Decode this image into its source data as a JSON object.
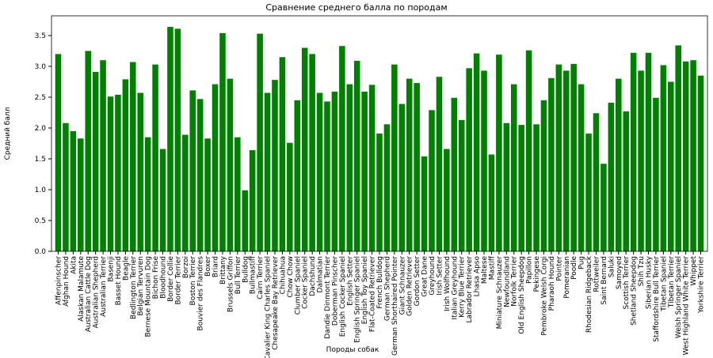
{
  "chart_data": {
    "type": "bar",
    "title": "Сравнение среднего балла по породам",
    "x_label": "Породы собак",
    "y_label": "Средний балл",
    "color": "#008000",
    "categories": [
      "Affenpinscher",
      "Afghan Hound",
      "Akita",
      "Alaskan Malamute",
      "Australian Cattle Dog",
      "Australian Shepherd",
      "Australian Terrier",
      "Basenji",
      "Basset Hound",
      "Beagle",
      "Bedlington Terrier",
      "Belgian Tervuren",
      "Bernese Mountain Dog",
      "Bichon Frise",
      "Bloodhound",
      "Border Collie",
      "Border Terrier",
      "Borzoi",
      "Boston Terrier",
      "Bouvier des Flandres",
      "Boxer",
      "Briard",
      "Brittany",
      "Brussels Griffon",
      "Bull Terrier",
      "Bulldog",
      "Bullmastiff",
      "Cairn Terrier",
      "Cavalier King Charles Spaniel",
      "Chesapeake Bay Retriever",
      "Chihuahua",
      "Chow Chow",
      "Clumber Spaniel",
      "Cocker Spaniel",
      "Dachshund",
      "Dalmatian",
      "Dandie Dinmont Terrier",
      "Doberman Pinscher",
      "English Cocker Spaniel",
      "English Setter",
      "English Springer Spaniel",
      "English Toy Spaniel",
      "Flat-Coated Retriever",
      "French Bulldog",
      "German Shepherd",
      "German Shorthaired Pointer",
      "Giant Schnauzer",
      "Golden Retriever",
      "Gordon Setter",
      "Great Dane",
      "Greyhound",
      "Irish Setter",
      "Irish Wolfhound",
      "Italian Greyhound",
      "Kerry Blue Terrier",
      "Labrador Retriever",
      "Lhasa Apso",
      "Maltese",
      "Mastiff",
      "Miniature Schnauzer",
      "Newfoundland",
      "Norfolk Terrier",
      "Old English Sheepdog",
      "Papillon",
      "Pekingese",
      "Pembroke Welsh Corgi",
      "Pharaoh Hound",
      "Pointer",
      "Pomeranian",
      "Poodle",
      "Pug",
      "Rhodesian Ridgeback",
      "Rottweiler",
      "Saint Bernard",
      "Saluki",
      "Samoyed",
      "Scottish Terrier",
      "Shetland Sheepdog",
      "Shih Tzu",
      "Siberian Husky",
      "Staffordshire Bull Terrier",
      "Tibetan Spaniel",
      "Tibetan Terrier",
      "Welsh Springer Spaniel",
      "West Highland White Terrier",
      "Whippet",
      "Yorkshire Terrier"
    ],
    "values": [
      3.2,
      2.08,
      1.95,
      1.83,
      3.25,
      2.91,
      3.1,
      2.51,
      2.54,
      2.79,
      3.07,
      2.57,
      1.85,
      3.03,
      1.66,
      3.64,
      3.61,
      1.89,
      2.61,
      2.47,
      1.83,
      2.71,
      3.54,
      2.8,
      1.85,
      0.99,
      1.64,
      3.53,
      2.57,
      2.78,
      3.15,
      1.76,
      2.45,
      3.3,
      3.2,
      2.57,
      2.43,
      2.59,
      3.33,
      2.71,
      3.09,
      2.59,
      2.7,
      1.91,
      2.06,
      3.03,
      2.39,
      2.8,
      2.73,
      1.54,
      2.29,
      2.83,
      1.66,
      2.49,
      2.13,
      2.97,
      3.21,
      2.93,
      1.57,
      3.19,
      2.08,
      2.71,
      2.05,
      3.26,
      2.06,
      2.45,
      2.81,
      3.03,
      2.93,
      3.04,
      2.71,
      1.91,
      2.24,
      1.42,
      2.41,
      2.8,
      2.27,
      3.22,
      2.93,
      3.22,
      2.49,
      3.02,
      2.75,
      3.34,
      3.08,
      3.1,
      2.85
    ],
    "ylim": [
      0,
      3.82
    ],
    "yticks": [
      {
        "value": 0,
        "label": "0.0"
      },
      0.5,
      {
        "value": 1,
        "label": "1.0"
      },
      1.5,
      {
        "value": 2,
        "label": "2.0"
      },
      2.5,
      {
        "value": 3,
        "label": "3.0"
      },
      3.5
    ]
  }
}
